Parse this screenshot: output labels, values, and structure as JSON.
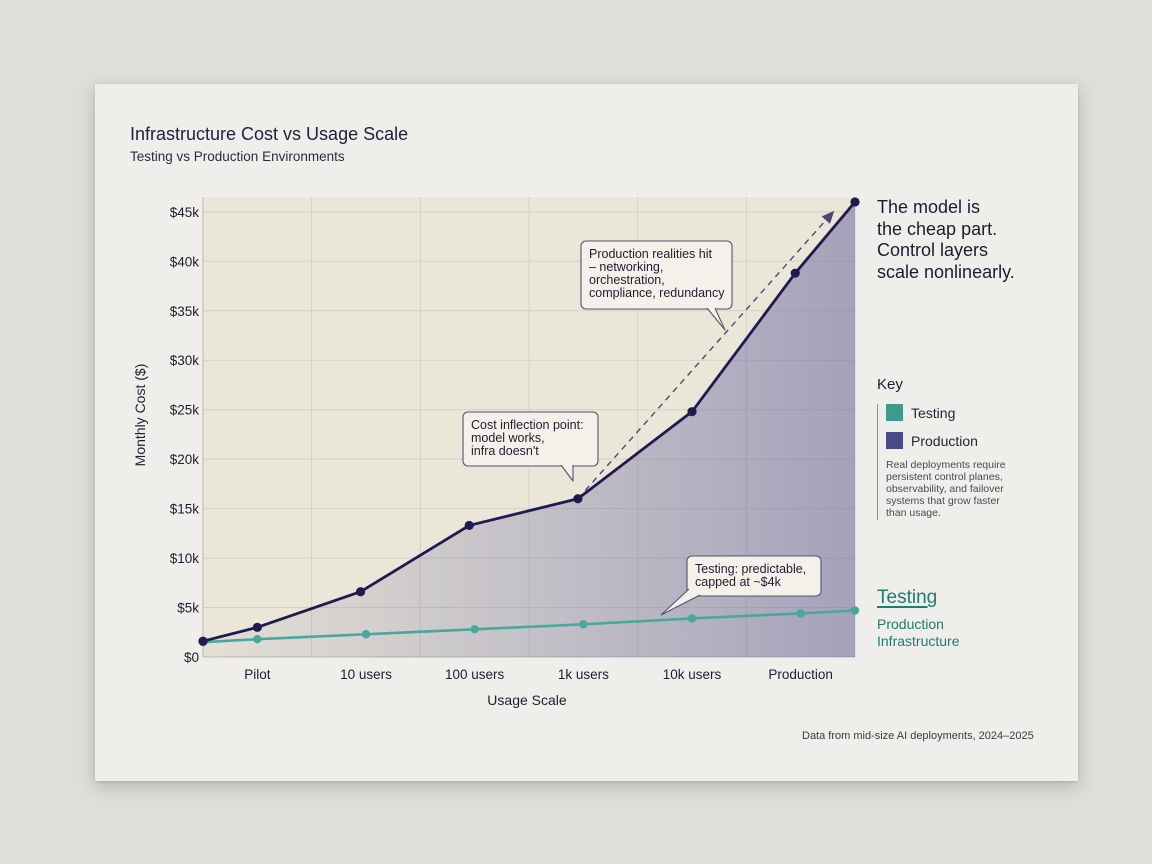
{
  "chart_data": {
    "type": "line",
    "title": "Infrastructure Cost vs Usage Scale",
    "subtitle": "Testing vs Production Environments",
    "xlabel": "Usage Scale",
    "ylabel": "Monthly Cost ($)",
    "x_tick_labels": [
      "Pilot",
      "10 users",
      "100 users",
      "1k users",
      "10k users",
      "Production"
    ],
    "y_ticks": [
      0,
      5000,
      10000,
      15000,
      20000,
      25000,
      30000,
      35000,
      40000,
      45000
    ],
    "y_tick_labels": [
      "$0",
      "$5k",
      "$10k",
      "$15k",
      "$20k",
      "$25k",
      "$30k",
      "$35k",
      "$40k",
      "$45k"
    ],
    "xlim": [
      0,
      6
    ],
    "ylim": [
      0,
      46500
    ],
    "grid": true,
    "legend_position": "right",
    "series": [
      {
        "name": "Production",
        "color": "#1f1a4f",
        "fill": "#6b6aa2",
        "x": [
          0,
          0.5,
          1.45,
          2.45,
          3.45,
          4.5,
          5.45,
          6.0
        ],
        "values": [
          1600,
          3000,
          6600,
          13300,
          16000,
          24800,
          38800,
          46000
        ]
      },
      {
        "name": "Testing",
        "color": "#4aa79b",
        "x": [
          0,
          0.5,
          1.5,
          2.5,
          3.5,
          4.5,
          5.5,
          6.0
        ],
        "values": [
          1500,
          1800,
          2300,
          2800,
          3300,
          3900,
          4400,
          4700
        ]
      }
    ],
    "projection": {
      "from_x": 3.45,
      "from_value": 16000,
      "to_x": 5.8,
      "to_value": 45000
    },
    "annotations": [
      {
        "id": "inflection",
        "text": [
          "Cost inflection point:",
          "model works,",
          "infra doesn't"
        ]
      },
      {
        "id": "realities",
        "text": [
          "Production realities hit",
          "– networking,",
          "orchestration,",
          "compliance, redundancy"
        ]
      },
      {
        "id": "testing",
        "text": [
          "Testing: predictable,",
          "capped at ~$4k"
        ]
      }
    ]
  },
  "side_panel": {
    "headline": "The model is\nthe cheap part.\nControl layers\nscale nonlinearly.",
    "key_title": "Key",
    "key_items": [
      {
        "label": "Testing",
        "color": "#3f9a8e"
      },
      {
        "label": "Production",
        "color": "#4c4a86"
      }
    ],
    "key_note": "Real deployments require\npersistent control planes,\nobservability, and failover\nsystems that grow faster\nthan usage.",
    "end_label_testing": "Testing",
    "end_label_production": "Production\nInfrastructure"
  },
  "footnote": "Data from mid-size AI deployments, 2024–2025"
}
